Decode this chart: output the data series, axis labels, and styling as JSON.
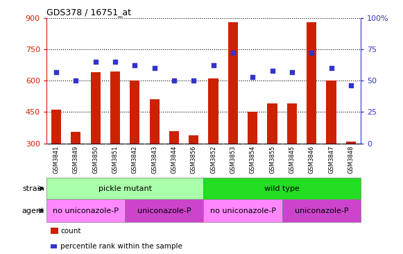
{
  "title": "GDS378 / 16751_at",
  "samples": [
    "GSM3841",
    "GSM3849",
    "GSM3850",
    "GSM3851",
    "GSM3842",
    "GSM3843",
    "GSM3844",
    "GSM3856",
    "GSM3852",
    "GSM3853",
    "GSM3854",
    "GSM3855",
    "GSM3845",
    "GSM3846",
    "GSM3847",
    "GSM3848"
  ],
  "counts": [
    460,
    355,
    640,
    645,
    600,
    510,
    360,
    340,
    610,
    880,
    450,
    490,
    490,
    878,
    600,
    310
  ],
  "percentiles": [
    57,
    50,
    65,
    65,
    62,
    60,
    50,
    50,
    62,
    72,
    53,
    58,
    57,
    72,
    60,
    46
  ],
  "ylim_left": [
    300,
    900
  ],
  "ylim_right": [
    0,
    100
  ],
  "yticks_left": [
    300,
    450,
    600,
    750,
    900
  ],
  "yticks_right": [
    0,
    25,
    50,
    75,
    100
  ],
  "bar_color": "#cc2200",
  "dot_color": "#3333cc",
  "strain_groups": [
    {
      "label": "pickle mutant",
      "start": 0,
      "end": 8,
      "color": "#aaffaa"
    },
    {
      "label": "wild type",
      "start": 8,
      "end": 16,
      "color": "#22dd22"
    }
  ],
  "agent_groups": [
    {
      "label": "no uniconazole-P",
      "start": 0,
      "end": 4,
      "color": "#ff88ff"
    },
    {
      "label": "uniconazole-P",
      "start": 4,
      "end": 8,
      "color": "#cc44cc"
    },
    {
      "label": "no uniconazole-P",
      "start": 8,
      "end": 12,
      "color": "#ff88ff"
    },
    {
      "label": "uniconazole-P",
      "start": 12,
      "end": 16,
      "color": "#cc44cc"
    }
  ],
  "bg_color": "#ffffff",
  "plot_bg_color": "#ffffff",
  "tick_bg_color": "#cccccc",
  "left_axis_color": "#cc2200",
  "right_axis_color": "#3333cc",
  "bar_width": 0.5
}
